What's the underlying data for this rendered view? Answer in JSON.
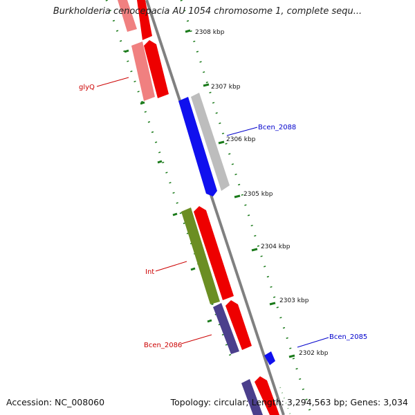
{
  "title": "Burkholderia cenocepacia AU 1054 chromosome 1, complete sequ...",
  "footer": {
    "accession": "Accession: NC_008060",
    "summary": "Topology: circular; Length: 3,294,563 bp; Genes: 3,034"
  },
  "ticks": [
    {
      "label": "2308 kbp"
    },
    {
      "label": "2307 kbp"
    },
    {
      "label": "2306 kbp"
    },
    {
      "label": "2305 kbp"
    },
    {
      "label": "2304 kbp"
    },
    {
      "label": "2303 kbp"
    },
    {
      "label": "2302 kbp"
    }
  ],
  "gene_labels": [
    {
      "name": "glyQ",
      "color": "#cc0000"
    },
    {
      "name": "Bcen_2088",
      "color": "#0000cc"
    },
    {
      "name": "Int",
      "color": "#cc0000"
    },
    {
      "name": "Bcen_2086",
      "color": "#cc0000"
    },
    {
      "name": "Bcen_2085",
      "color": "#0000cc"
    }
  ],
  "colors": {
    "cds_red": "#ee0000",
    "cds_pink": "#f08080",
    "cds_blue": "#1010ee",
    "cds_grey": "#bdbdbd",
    "cds_green": "#6b8e23",
    "cds_purple": "#4b3f8c",
    "tick_green": "#1a7a1a",
    "backbone": "#808080"
  }
}
